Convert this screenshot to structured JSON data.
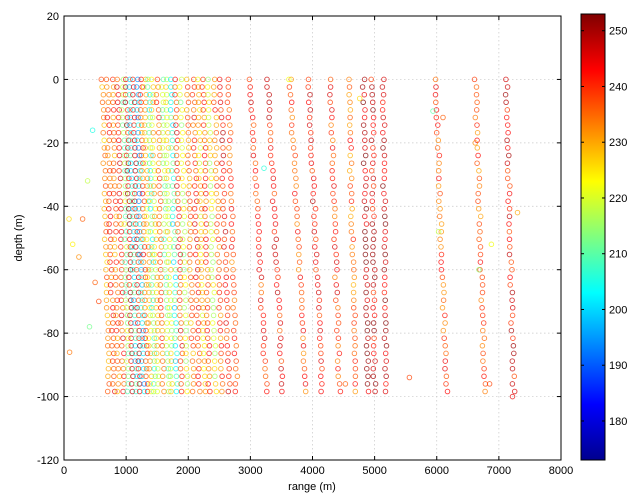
{
  "chart_data": {
    "type": "scatter",
    "title": "",
    "xlabel": "range (m)",
    "ylabel": "depth (m)",
    "xlim": [
      0,
      8000
    ],
    "ylim": [
      -120,
      20
    ],
    "x_ticks": [
      0,
      1000,
      2000,
      3000,
      4000,
      5000,
      6000,
      7000,
      8000
    ],
    "y_ticks": [
      -120,
      -100,
      -80,
      -60,
      -40,
      -20,
      0,
      20
    ],
    "grid": true,
    "marker": "open-circle",
    "colorbar": {
      "colormap": "jet",
      "range": [
        173,
        253
      ],
      "ticks": [
        180,
        190,
        200,
        210,
        220,
        230,
        240,
        250
      ],
      "tick_labels": [
        "180",
        "190",
        "200",
        "210",
        "220",
        "230",
        "240",
        "250"
      ]
    },
    "scan_lines": [
      {
        "x0": 620,
        "x1": 720,
        "c": 232
      },
      {
        "x0": 700,
        "x1": 800,
        "c": 238
      },
      {
        "x0": 780,
        "x1": 880,
        "c": 235
      },
      {
        "x0": 860,
        "x1": 960,
        "c": 240
      },
      {
        "x0": 940,
        "x1": 1040,
        "c": 215
      },
      {
        "x0": 1000,
        "x1": 1100,
        "c": 246
      },
      {
        "x0": 1060,
        "x1": 1160,
        "c": 205
      },
      {
        "x0": 1120,
        "x1": 1220,
        "c": 244
      },
      {
        "x0": 1180,
        "x1": 1280,
        "c": 200
      },
      {
        "x0": 1240,
        "x1": 1340,
        "c": 238
      },
      {
        "x0": 1300,
        "x1": 1400,
        "c": 228
      },
      {
        "x0": 1360,
        "x1": 1460,
        "c": 210
      },
      {
        "x0": 1420,
        "x1": 1520,
        "c": 225
      },
      {
        "x0": 1500,
        "x1": 1600,
        "c": 236
      },
      {
        "x0": 1580,
        "x1": 1680,
        "c": 214
      },
      {
        "x0": 1640,
        "x1": 1740,
        "c": 222
      },
      {
        "x0": 1720,
        "x1": 1820,
        "c": 206
      },
      {
        "x0": 1800,
        "x1": 1900,
        "c": 240
      },
      {
        "x0": 1880,
        "x1": 1980,
        "c": 219
      },
      {
        "x0": 1980,
        "x1": 2080,
        "c": 233
      },
      {
        "x0": 2080,
        "x1": 2180,
        "c": 240
      },
      {
        "x0": 2160,
        "x1": 2260,
        "c": 226
      },
      {
        "x0": 2240,
        "x1": 2340,
        "c": 238
      },
      {
        "x0": 2320,
        "x1": 2440,
        "c": 221
      },
      {
        "x0": 2420,
        "x1": 2540,
        "c": 236
      },
      {
        "x0": 2520,
        "x1": 2660,
        "c": 242
      },
      {
        "x0": 2640,
        "x1": 2780,
        "c": 238
      },
      {
        "x0": 3000,
        "x1": 3260,
        "c": 240
      },
      {
        "x0": 3280,
        "x1": 3520,
        "c": 242
      },
      {
        "x0": 3640,
        "x1": 3900,
        "c": 238
      },
      {
        "x0": 3940,
        "x1": 4160,
        "c": 243
      },
      {
        "x0": 4280,
        "x1": 4440,
        "c": 240
      },
      {
        "x0": 4580,
        "x1": 4700,
        "c": 236
      },
      {
        "x0": 4820,
        "x1": 4900,
        "c": 250
      },
      {
        "x0": 4960,
        "x1": 5000,
        "c": 245
      },
      {
        "x0": 5140,
        "x1": 5180,
        "c": 248
      },
      {
        "x0": 5980,
        "x1": 6160,
        "c": 238
      },
      {
        "x0": 6620,
        "x1": 6780,
        "c": 237
      },
      {
        "x0": 7120,
        "x1": 7240,
        "c": 244
      }
    ],
    "points": [
      {
        "x": 460,
        "y": -16,
        "c": 205
      },
      {
        "x": 380,
        "y": -32,
        "c": 218
      },
      {
        "x": 300,
        "y": -44,
        "c": 236
      },
      {
        "x": 240,
        "y": -56,
        "c": 232
      },
      {
        "x": 140,
        "y": -52,
        "c": 224
      },
      {
        "x": 80,
        "y": -44,
        "c": 226
      },
      {
        "x": 90,
        "y": -86,
        "c": 234
      },
      {
        "x": 410,
        "y": -78,
        "c": 212
      },
      {
        "x": 500,
        "y": -64,
        "c": 236
      },
      {
        "x": 560,
        "y": -70,
        "c": 238
      },
      {
        "x": 3620,
        "y": 0,
        "c": 222
      },
      {
        "x": 3220,
        "y": -28,
        "c": 206
      },
      {
        "x": 4760,
        "y": -6,
        "c": 226
      },
      {
        "x": 5940,
        "y": -10,
        "c": 210
      },
      {
        "x": 6100,
        "y": -12,
        "c": 236
      },
      {
        "x": 6620,
        "y": -20,
        "c": 232
      },
      {
        "x": 6030,
        "y": -48,
        "c": 218
      },
      {
        "x": 6680,
        "y": -60,
        "c": 214
      },
      {
        "x": 6880,
        "y": -52,
        "c": 222
      },
      {
        "x": 7300,
        "y": -42,
        "c": 230
      },
      {
        "x": 4530,
        "y": -96,
        "c": 236
      },
      {
        "x": 5560,
        "y": -94,
        "c": 238
      },
      {
        "x": 7220,
        "y": -100,
        "c": 245
      },
      {
        "x": 6850,
        "y": -96,
        "c": 238
      }
    ]
  }
}
